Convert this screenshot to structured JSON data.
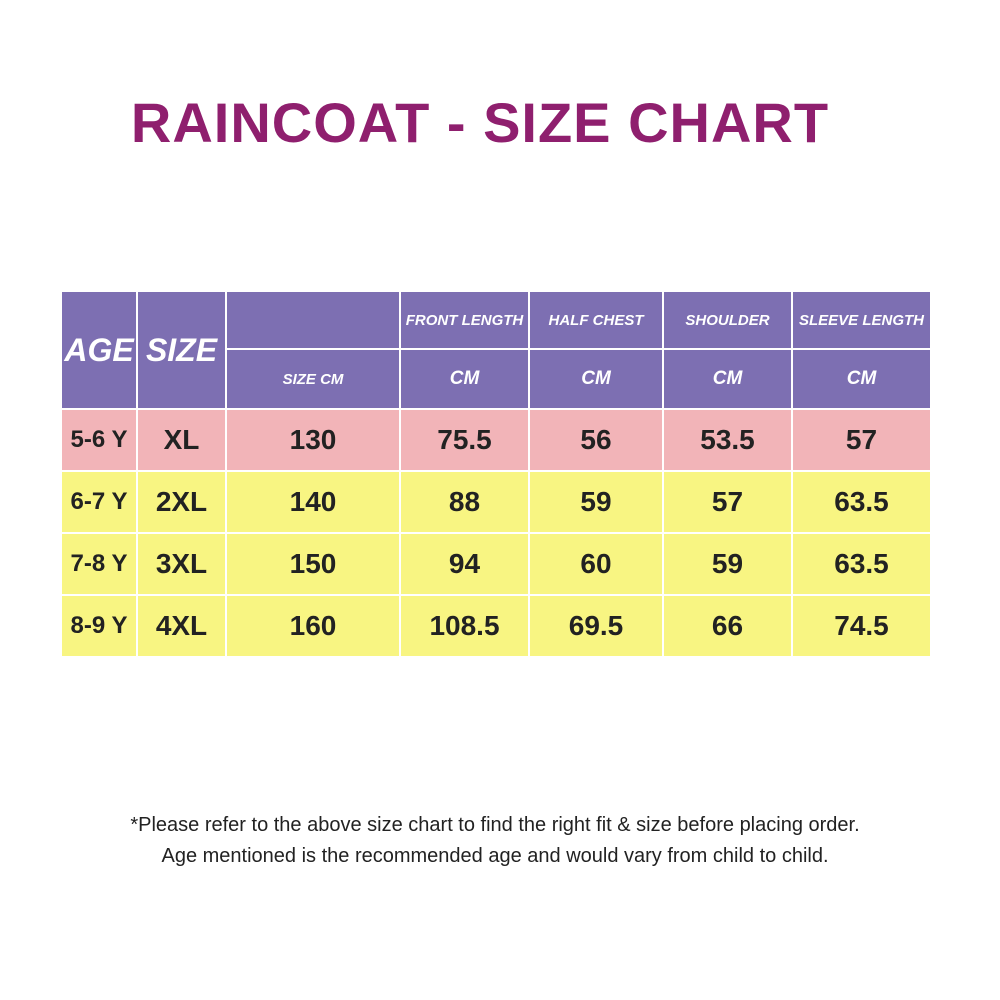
{
  "title": "RAINCOAT - SIZE CHART",
  "colors": {
    "title": "#8f1f6e",
    "header_bg": "#7d6fb2",
    "row_highlight_bg": "#f2b4b8",
    "row_bg": "#f8f582",
    "text": "#222222"
  },
  "chart_data": {
    "type": "table",
    "title": "RAINCOAT - SIZE CHART",
    "header": {
      "age": "AGE",
      "size": "SIZE",
      "columns": [
        {
          "label": "",
          "unit": "SIZE CM"
        },
        {
          "label": "FRONT LENGTH",
          "unit": "CM"
        },
        {
          "label": "HALF CHEST",
          "unit": "CM"
        },
        {
          "label": "SHOULDER",
          "unit": "CM"
        },
        {
          "label": "SLEEVE LENGTH",
          "unit": "CM"
        }
      ]
    },
    "rows": [
      {
        "age": "5-6 Y",
        "size": "XL",
        "values": [
          "130",
          "75.5",
          "56",
          "53.5",
          "57"
        ],
        "color": "#f2b4b8"
      },
      {
        "age": "6-7 Y",
        "size": "2XL",
        "values": [
          "140",
          "88",
          "59",
          "57",
          "63.5"
        ],
        "color": "#f8f582"
      },
      {
        "age": "7-8 Y",
        "size": "3XL",
        "values": [
          "150",
          "94",
          "60",
          "59",
          "63.5"
        ],
        "color": "#f8f582"
      },
      {
        "age": "8-9 Y",
        "size": "4XL",
        "values": [
          "160",
          "108.5",
          "69.5",
          "66",
          "74.5"
        ],
        "color": "#f8f582"
      }
    ]
  },
  "notes": [
    "*Please refer to the above size chart to find the right fit & size before placing order.",
    "Age mentioned is the recommended age and would vary from child to child."
  ]
}
